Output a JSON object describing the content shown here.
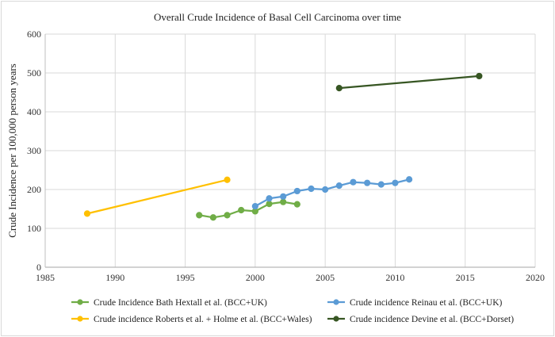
{
  "chart_data": {
    "type": "line",
    "title": "Overall Crude Incidence of Basal Cell Carcinoma over time",
    "xlabel": "",
    "ylabel": "Crude Incidence per 100,000 person years",
    "xlim": [
      1985,
      2020
    ],
    "ylim": [
      0,
      600
    ],
    "xticks": [
      1985,
      1990,
      1995,
      2000,
      2005,
      2010,
      2015,
      2020
    ],
    "yticks": [
      0,
      100,
      200,
      300,
      400,
      500,
      600
    ],
    "grid": true,
    "legend_position": "bottom",
    "series": [
      {
        "name": "Crude Incidence Bath Hextall et al. (BCC+UK)",
        "color": "#70ad47",
        "x": [
          1996,
          1997,
          1998,
          1999,
          2000,
          2001,
          2002,
          2003
        ],
        "y": [
          134,
          128,
          134,
          147,
          144,
          163,
          168,
          162
        ]
      },
      {
        "name": "Crude incidence Reinau et al. (BCC+UK)",
        "color": "#5b9bd5",
        "x": [
          2000,
          2001,
          2002,
          2003,
          2004,
          2005,
          2006,
          2007,
          2008,
          2009,
          2010,
          2011
        ],
        "y": [
          157,
          177,
          182,
          196,
          202,
          200,
          210,
          219,
          217,
          213,
          217,
          226
        ]
      },
      {
        "name": "Crude incidence Roberts et al. + Holme et al. (BCC+Wales)",
        "color": "#ffc000",
        "x": [
          1988,
          1998
        ],
        "y": [
          138,
          225
        ]
      },
      {
        "name": "Crude incidence Devine et al. (BCC+Dorset)",
        "color": "#375623",
        "x": [
          2006,
          2016
        ],
        "y": [
          461,
          492
        ]
      }
    ]
  }
}
